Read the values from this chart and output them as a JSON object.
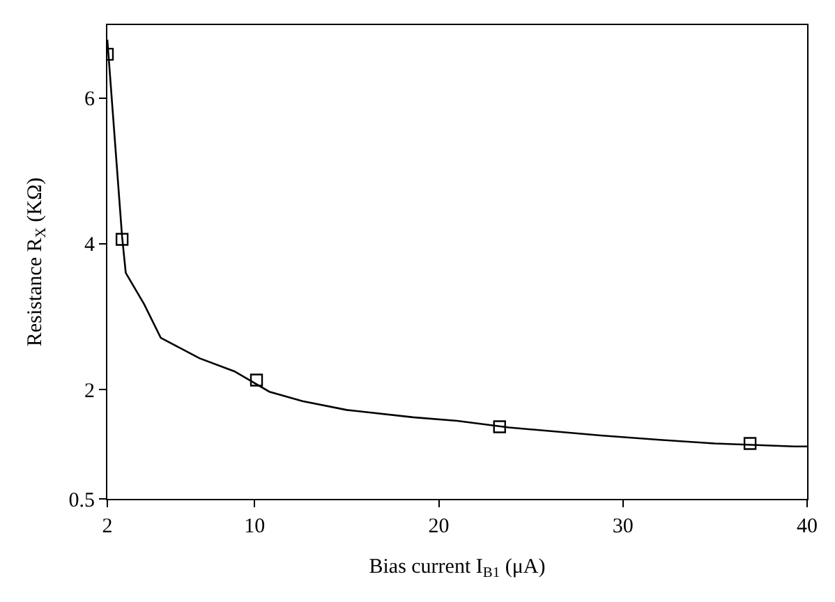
{
  "chart_data": {
    "type": "line",
    "xlabel": "Bias current I$_{B1}$ (μA)",
    "ylabel": "Resistance R$_{X}$ (KΩ)",
    "xlim": [
      2,
      40
    ],
    "xticks": [
      2,
      10,
      20,
      30,
      40
    ],
    "ylim": [
      0.5,
      7
    ],
    "yticks": [
      0.5,
      2,
      4,
      6
    ],
    "series": [
      {
        "marker": "none",
        "line_style": "solid",
        "color": "#000000",
        "x": [
          2,
          2.8,
          3.0,
          4.0,
          4.9,
          7.0,
          8.9,
          10.8,
          12.6,
          15.0,
          18.6,
          21.0,
          23.8,
          28.8,
          32.0,
          35.0,
          39.3,
          40
        ],
        "values": [
          6.8,
          4.1,
          3.6,
          3.17,
          2.71,
          2.43,
          2.25,
          1.97,
          1.84,
          1.72,
          1.62,
          1.57,
          1.48,
          1.37,
          1.31,
          1.26,
          1.22,
          1.22
        ]
      },
      {
        "type": "scatter",
        "marker": "square",
        "color": "#000000",
        "x": [
          2,
          2.8,
          10.1,
          23.3,
          36.9
        ],
        "values": [
          6.6,
          4.06,
          2.13,
          1.49,
          1.26
        ]
      }
    ]
  }
}
